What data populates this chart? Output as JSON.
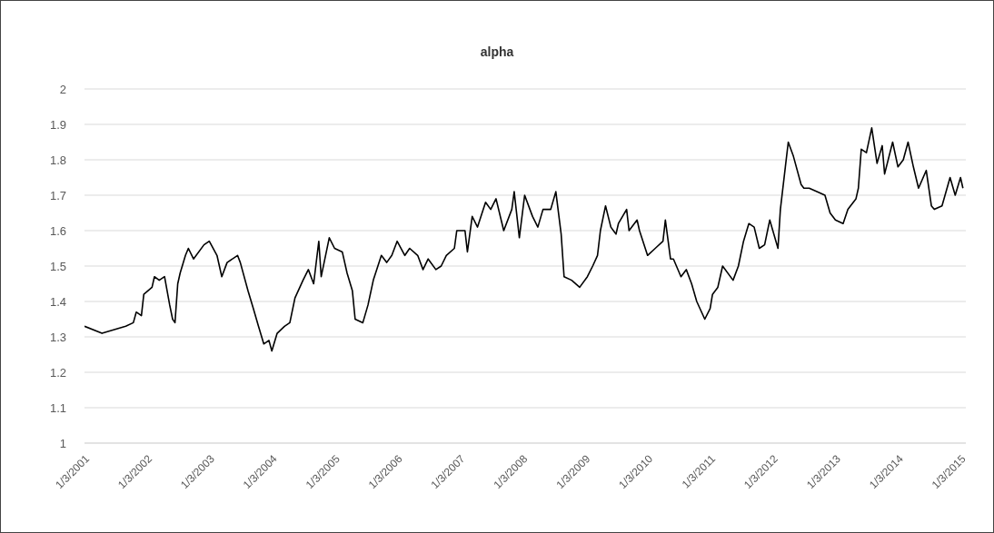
{
  "chart_data": {
    "type": "line",
    "title": "alpha",
    "x": [
      "2001-01-03",
      "2001-04-15",
      "2001-09-01",
      "2001-10-15",
      "2001-11-01",
      "2001-12-01",
      "2001-12-15",
      "2002-02-01",
      "2002-02-15",
      "2002-03-15",
      "2002-04-15",
      "2002-05-15",
      "2002-06-01",
      "2002-06-15",
      "2002-07-01",
      "2002-07-15",
      "2002-08-15",
      "2002-09-01",
      "2002-10-01",
      "2002-12-01",
      "2003-01-01",
      "2003-02-15",
      "2003-03-15",
      "2003-04-15",
      "2003-06-15",
      "2003-07-01",
      "2003-08-15",
      "2003-09-15",
      "2003-10-15",
      "2003-11-15",
      "2003-12-15",
      "2004-01-01",
      "2004-02-01",
      "2004-03-15",
      "2004-04-15",
      "2004-05-15",
      "2004-07-01",
      "2004-08-01",
      "2004-09-01",
      "2004-10-01",
      "2004-10-15",
      "2004-12-01",
      "2005-01-01",
      "2005-02-15",
      "2005-03-15",
      "2005-04-15",
      "2005-05-01",
      "2005-06-15",
      "2005-07-15",
      "2005-08-15",
      "2005-10-01",
      "2005-11-01",
      "2005-12-01",
      "2006-01-01",
      "2006-02-15",
      "2006-03-15",
      "2006-05-01",
      "2006-06-01",
      "2006-07-01",
      "2006-08-15",
      "2006-09-15",
      "2006-10-15",
      "2006-12-01",
      "2006-12-15",
      "2007-02-01",
      "2007-02-15",
      "2007-03-15",
      "2007-04-15",
      "2007-06-01",
      "2007-07-01",
      "2007-08-01",
      "2007-09-15",
      "2007-11-01",
      "2007-11-15",
      "2007-12-15",
      "2008-01-15",
      "2008-03-01",
      "2008-04-01",
      "2008-05-01",
      "2008-06-15",
      "2008-07-15",
      "2008-08-15",
      "2008-09-01",
      "2008-10-15",
      "2008-12-01",
      "2009-01-15",
      "2009-02-15",
      "2009-03-15",
      "2009-04-01",
      "2009-05-01",
      "2009-06-01",
      "2009-07-01",
      "2009-07-15",
      "2009-09-01",
      "2009-09-15",
      "2009-11-01",
      "2009-11-15",
      "2010-01-01",
      "2010-02-15",
      "2010-04-01",
      "2010-04-15",
      "2010-05-15",
      "2010-06-01",
      "2010-07-15",
      "2010-08-15",
      "2010-09-15",
      "2010-10-15",
      "2010-12-01",
      "2011-01-01",
      "2011-01-15",
      "2011-02-15",
      "2011-03-15",
      "2011-05-15",
      "2011-06-15",
      "2011-07-15",
      "2011-08-15",
      "2011-09-15",
      "2011-10-15",
      "2011-11-15",
      "2011-12-15",
      "2012-02-01",
      "2012-02-15",
      "2012-03-15",
      "2012-04-01",
      "2012-05-01",
      "2012-06-15",
      "2012-07-01",
      "2012-08-01",
      "2012-09-15",
      "2012-11-01",
      "2012-12-01",
      "2013-01-01",
      "2013-02-15",
      "2013-03-15",
      "2013-05-01",
      "2013-05-15",
      "2013-06-01",
      "2013-07-01",
      "2013-08-01",
      "2013-09-01",
      "2013-10-01",
      "2013-10-15",
      "2013-12-01",
      "2014-01-01",
      "2014-02-01",
      "2014-03-01",
      "2014-04-01",
      "2014-05-01",
      "2014-06-15",
      "2014-07-15",
      "2014-08-01",
      "2014-09-15",
      "2014-11-01",
      "2014-12-01",
      "2015-01-01",
      "2015-01-15"
    ],
    "series": [
      {
        "color": "#000000",
        "values": [
          1.33,
          1.31,
          1.33,
          1.34,
          1.37,
          1.36,
          1.42,
          1.44,
          1.47,
          1.46,
          1.47,
          1.39,
          1.35,
          1.34,
          1.45,
          1.48,
          1.53,
          1.55,
          1.52,
          1.56,
          1.57,
          1.53,
          1.47,
          1.51,
          1.53,
          1.51,
          1.43,
          1.38,
          1.33,
          1.28,
          1.29,
          1.26,
          1.31,
          1.33,
          1.34,
          1.41,
          1.46,
          1.49,
          1.45,
          1.57,
          1.47,
          1.58,
          1.55,
          1.54,
          1.48,
          1.43,
          1.35,
          1.34,
          1.39,
          1.46,
          1.53,
          1.51,
          1.53,
          1.57,
          1.53,
          1.55,
          1.53,
          1.49,
          1.52,
          1.49,
          1.5,
          1.53,
          1.55,
          1.6,
          1.6,
          1.54,
          1.64,
          1.61,
          1.68,
          1.66,
          1.69,
          1.6,
          1.66,
          1.71,
          1.58,
          1.7,
          1.64,
          1.61,
          1.66,
          1.66,
          1.71,
          1.59,
          1.47,
          1.46,
          1.44,
          1.47,
          1.5,
          1.53,
          1.6,
          1.67,
          1.61,
          1.59,
          1.62,
          1.66,
          1.6,
          1.63,
          1.6,
          1.53,
          1.55,
          1.57,
          1.63,
          1.52,
          1.52,
          1.47,
          1.49,
          1.45,
          1.4,
          1.35,
          1.38,
          1.42,
          1.44,
          1.5,
          1.46,
          1.5,
          1.57,
          1.62,
          1.61,
          1.55,
          1.56,
          1.63,
          1.55,
          1.66,
          1.78,
          1.85,
          1.81,
          1.73,
          1.72,
          1.72,
          1.71,
          1.7,
          1.65,
          1.63,
          1.62,
          1.66,
          1.69,
          1.72,
          1.83,
          1.82,
          1.89,
          1.79,
          1.84,
          1.76,
          1.85,
          1.78,
          1.8,
          1.85,
          1.78,
          1.72,
          1.77,
          1.67,
          1.66,
          1.67,
          1.75,
          1.7,
          1.75,
          1.72
        ]
      }
    ],
    "xlim": [
      "2001-01-03",
      "2015-02-01"
    ],
    "xticks": [
      {
        "value": "2001-01-03",
        "label": "1/3/2001"
      },
      {
        "value": "2002-01-03",
        "label": "1/3/2002"
      },
      {
        "value": "2003-01-03",
        "label": "1/3/2003"
      },
      {
        "value": "2004-01-03",
        "label": "1/3/2004"
      },
      {
        "value": "2005-01-03",
        "label": "1/3/2005"
      },
      {
        "value": "2006-01-03",
        "label": "1/3/2006"
      },
      {
        "value": "2007-01-03",
        "label": "1/3/2007"
      },
      {
        "value": "2008-01-03",
        "label": "1/3/2008"
      },
      {
        "value": "2009-01-03",
        "label": "1/3/2009"
      },
      {
        "value": "2010-01-03",
        "label": "1/3/2010"
      },
      {
        "value": "2011-01-03",
        "label": "1/3/2011"
      },
      {
        "value": "2012-01-03",
        "label": "1/3/2012"
      },
      {
        "value": "2013-01-03",
        "label": "1/3/2013"
      },
      {
        "value": "2014-01-03",
        "label": "1/3/2014"
      },
      {
        "value": "2015-01-03",
        "label": "1/3/2015"
      }
    ],
    "ylim": [
      1,
      2
    ],
    "yticks": [
      1,
      1.1,
      1.2,
      1.3,
      1.4,
      1.5,
      1.6,
      1.7,
      1.8,
      1.9,
      2
    ],
    "grid": "y"
  }
}
